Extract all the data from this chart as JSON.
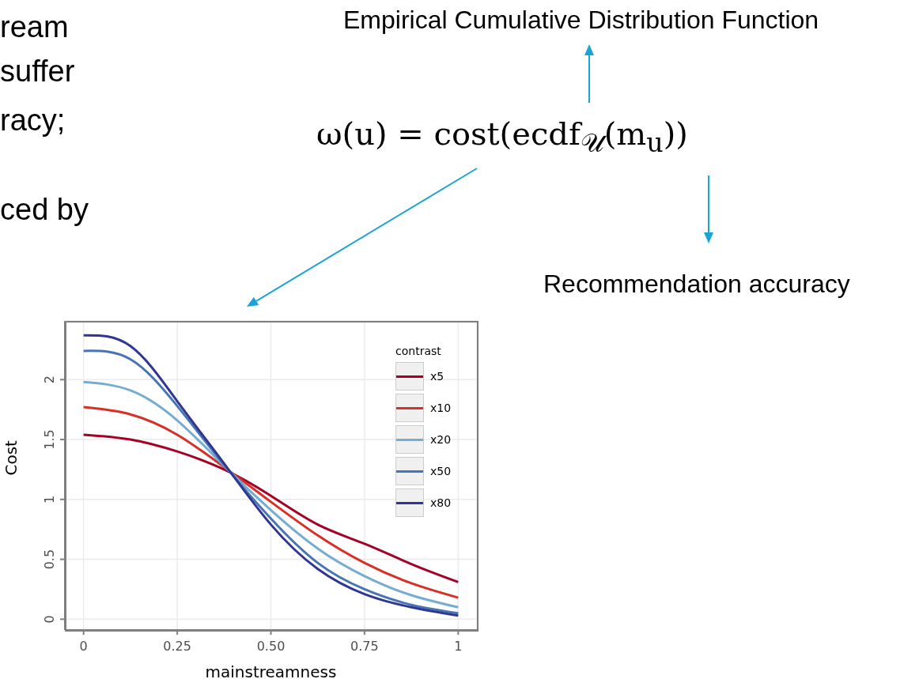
{
  "chart_data": {
    "type": "line",
    "xlabel": "mainstreamness",
    "ylabel": "Cost",
    "legend_title": "contrast",
    "legend": "top right",
    "grid": true,
    "x": [
      0,
      0.125,
      0.25,
      0.375,
      0.5,
      0.625,
      0.75,
      0.875,
      1
    ],
    "xlim": [
      -0.05,
      1.05
    ],
    "xticks": [
      {
        "value": 0,
        "label": "0"
      },
      {
        "value": 0.25,
        "label": "0.25"
      },
      {
        "value": 0.5,
        "label": "0.50"
      },
      {
        "value": 0.75,
        "label": "0.75"
      },
      {
        "value": 1,
        "label": "1"
      }
    ],
    "ylim": [
      -0.09,
      2.49
    ],
    "yticks": [
      0,
      0.5,
      1,
      1.5,
      2
    ],
    "series": [
      {
        "name": "x5",
        "color": "#a50026",
        "values": [
          1.54,
          1.5,
          1.4,
          1.25,
          1.03,
          0.79,
          0.63,
          0.46,
          0.31
        ]
      },
      {
        "name": "x10",
        "color": "#d73027",
        "values": [
          1.77,
          1.71,
          1.54,
          1.27,
          0.98,
          0.7,
          0.47,
          0.3,
          0.18
        ]
      },
      {
        "name": "x20",
        "color": "#74add1",
        "values": [
          1.98,
          1.91,
          1.66,
          1.28,
          0.91,
          0.59,
          0.36,
          0.2,
          0.1
        ]
      },
      {
        "name": "x50",
        "color": "#4575b4",
        "values": [
          2.24,
          2.17,
          1.78,
          1.29,
          0.84,
          0.47,
          0.25,
          0.12,
          0.05
        ]
      },
      {
        "name": "x80",
        "color": "#313695",
        "values": [
          2.37,
          2.28,
          1.82,
          1.3,
          0.79,
          0.42,
          0.21,
          0.1,
          0.03
        ]
      }
    ],
    "annotations": [
      "ream",
      "suffer",
      "racy;",
      "ced by",
      "ω(u) = cost(ecdf$_{𝒰}$(m$_{u}$))",
      "Empirical Cumulative Distribution Function",
      "Recommendation accuracy"
    ]
  }
}
